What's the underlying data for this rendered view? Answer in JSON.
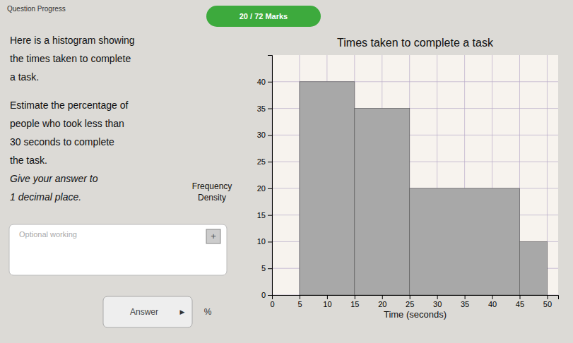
{
  "chart_data": {
    "type": "histogram",
    "title": "Times taken to complete a task",
    "x_label": "Time (seconds)",
    "y_label": "Frequency\nDensity",
    "bins": [
      5,
      15,
      25,
      45,
      50
    ],
    "values": [
      40,
      35,
      20,
      10
    ],
    "color": "#a8a8a8",
    "xlim": [
      0,
      52
    ],
    "ylim": [
      0,
      45
    ],
    "xticks": [
      0,
      5,
      10,
      15,
      20,
      25,
      30,
      35,
      40,
      45,
      50
    ],
    "yticks": [
      0,
      5,
      10,
      15,
      20,
      25,
      30,
      35,
      40
    ],
    "grid": true
  },
  "page": {
    "header_text": "20 / 72 Marks",
    "question_progress": "Question Progress",
    "question_text": [
      "Here is a histogram showing",
      "the times taken to complete",
      "a task.",
      "Estimate the percentage of",
      "people who took less than",
      "30 seconds to complete",
      "the task.",
      "Give your answer to",
      "1 decimal place."
    ],
    "optional_working": "Optional working",
    "add_icon": "+",
    "answer": "Answer",
    "answer_icon": "▶",
    "percent_sign": "%"
  }
}
